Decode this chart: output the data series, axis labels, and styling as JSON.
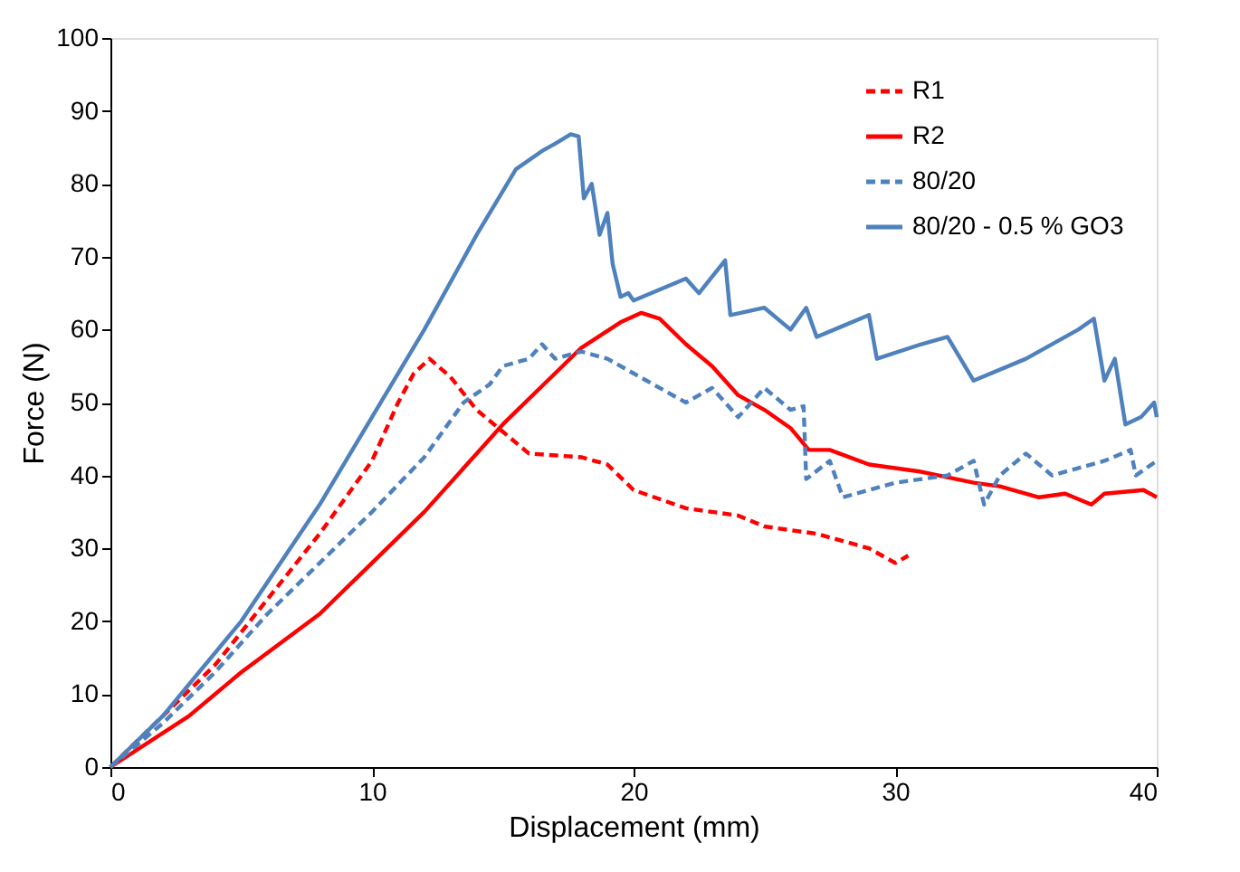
{
  "chart_data": {
    "type": "line",
    "xlabel": "Displacement  (mm)",
    "ylabel": "Force (N)",
    "xlim": [
      0,
      40
    ],
    "xticks": [
      0,
      10,
      20,
      30,
      40
    ],
    "ylim": [
      0,
      100
    ],
    "yticks": [
      0,
      10,
      20,
      30,
      40,
      50,
      60,
      70,
      80,
      90,
      100
    ],
    "grid": false,
    "legend": "top right",
    "marker": "none",
    "series": [
      {
        "name": "R1",
        "color": "#ff0000",
        "line_style": "dashed",
        "x": [
          0,
          2,
          4,
          6,
          8,
          10,
          11,
          11.6,
          12.2,
          13,
          14,
          15,
          16,
          18,
          19,
          20,
          22,
          24,
          25,
          27,
          28,
          29,
          29.5,
          30,
          30.5
        ],
        "values": [
          0,
          7,
          14,
          23,
          32,
          42,
          50,
          54,
          56,
          53.5,
          49,
          46,
          43,
          42.5,
          41.5,
          38,
          35.5,
          34.5,
          33,
          32,
          31,
          30,
          29,
          28,
          29
        ]
      },
      {
        "name": "R2",
        "color": "#ff0000",
        "line_style": "solid",
        "x": [
          0,
          3,
          5,
          8,
          10,
          12,
          14,
          15,
          17,
          18,
          19.5,
          20.3,
          21,
          22,
          23,
          24,
          25,
          26,
          26.7,
          27.5,
          29,
          31,
          33,
          34,
          35.5,
          36.5,
          37.5,
          38,
          39.5,
          40
        ],
        "values": [
          0,
          7,
          13,
          21,
          28,
          35,
          43,
          47,
          54,
          57.5,
          61,
          62.3,
          61.5,
          58,
          55,
          51,
          49,
          46.5,
          43.5,
          43.5,
          41.5,
          40.5,
          39,
          38.5,
          37,
          37.5,
          36,
          37.5,
          38,
          37
        ]
      },
      {
        "name": "80/20",
        "color": "#4f81bd",
        "line_style": "dashed",
        "x": [
          0,
          2,
          4,
          6,
          8,
          10,
          12,
          13.5,
          14.5,
          15,
          16,
          16.5,
          17,
          18,
          19,
          20,
          21,
          22,
          23,
          24,
          25,
          26,
          26.5,
          26.6,
          27.5,
          28,
          30,
          32,
          33,
          33.4,
          34,
          35,
          36,
          38,
          39,
          39.2,
          40
        ],
        "values": [
          0,
          6,
          13,
          21,
          28,
          35,
          42.5,
          50,
          52.5,
          55,
          56,
          58,
          56,
          57,
          56,
          54,
          52,
          50,
          52,
          48,
          52,
          49,
          49.5,
          39.5,
          42,
          37,
          39,
          40,
          42,
          36,
          40,
          43,
          40,
          42,
          43.5,
          40,
          42
        ]
      },
      {
        "name": "80/20 - 0.5 % GO3",
        "color": "#4f81bd",
        "line_style": "solid",
        "x": [
          0,
          2,
          5,
          8,
          10,
          12,
          14,
          15,
          15.5,
          16.5,
          17,
          17.6,
          17.9,
          18.1,
          18.4,
          18.7,
          19,
          19.2,
          19.5,
          19.8,
          20,
          22,
          22.5,
          23.5,
          23.7,
          25,
          26,
          26.6,
          27,
          28,
          29,
          29.3,
          31,
          32,
          33,
          35,
          37,
          37.6,
          38,
          38.4,
          38.8,
          39.4,
          39.9,
          40
        ],
        "values": [
          0,
          7,
          20,
          36,
          48,
          60,
          73,
          79,
          82,
          84.5,
          85.5,
          86.8,
          86.5,
          78,
          80,
          73,
          76,
          69,
          64.5,
          65,
          64,
          67,
          65,
          69.5,
          62,
          63,
          60,
          63,
          59,
          60.5,
          62,
          56,
          58,
          59,
          53,
          56,
          60,
          61.5,
          53,
          56,
          47,
          48,
          50,
          48
        ]
      }
    ]
  }
}
